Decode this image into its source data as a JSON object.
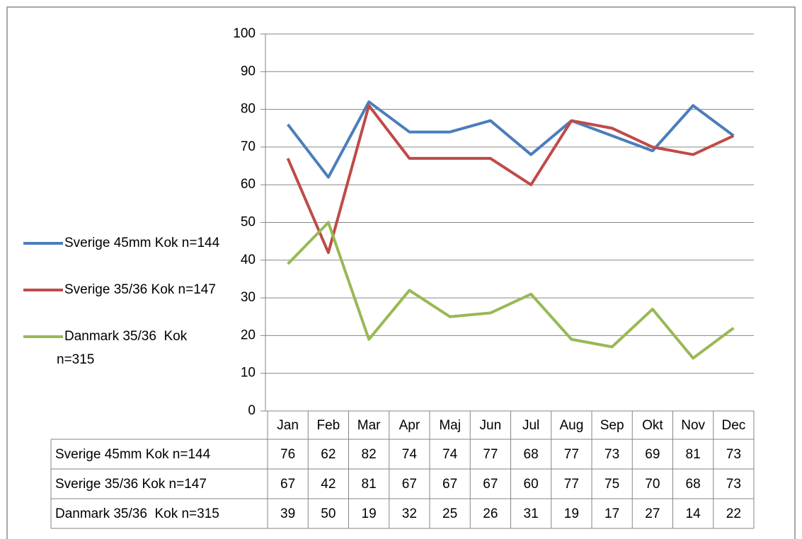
{
  "chart_data": {
    "type": "line",
    "categories": [
      "Jan",
      "Feb",
      "Mar",
      "Apr",
      "Maj",
      "Jun",
      "Jul",
      "Aug",
      "Sep",
      "Okt",
      "Nov",
      "Dec"
    ],
    "series": [
      {
        "name": "Sverige 45mm Kok n=144",
        "color": "#4a7ebb",
        "values": [
          76,
          62,
          82,
          74,
          74,
          77,
          68,
          77,
          73,
          69,
          81,
          73
        ]
      },
      {
        "name": "Sverige 35/36 Kok n=147",
        "color": "#be4b48",
        "values": [
          67,
          42,
          81,
          67,
          67,
          67,
          60,
          77,
          75,
          70,
          68,
          73
        ]
      },
      {
        "name": "Danmark 35/36  Kok n=315",
        "color": "#98b954",
        "values": [
          39,
          50,
          19,
          32,
          25,
          26,
          31,
          19,
          17,
          27,
          14,
          22
        ]
      }
    ],
    "ylim": [
      0,
      100
    ],
    "yticks": [
      0,
      10,
      20,
      30,
      40,
      50,
      60,
      70,
      80,
      90,
      100
    ],
    "grid": true,
    "legend": "left"
  }
}
